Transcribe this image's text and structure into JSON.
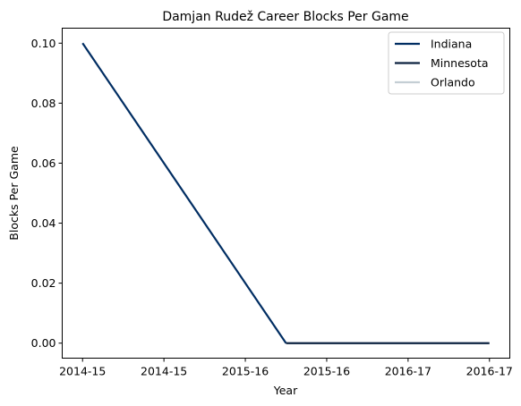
{
  "chart_data": {
    "type": "line",
    "title": "Damjan Rudež Career Blocks Per Game",
    "xlabel": "Year",
    "ylabel": "Blocks Per Game",
    "x_tick_labels": [
      "2014-15",
      "2014-15",
      "2015-16",
      "2015-16",
      "2016-17",
      "2016-17"
    ],
    "y_tick_labels": [
      "0.00",
      "0.02",
      "0.04",
      "0.06",
      "0.08",
      "0.10"
    ],
    "y_ticks": [
      0.0,
      0.02,
      0.04,
      0.06,
      0.08,
      0.1
    ],
    "xlim": [
      -0.25,
      5.25
    ],
    "ylim": [
      -0.005,
      0.105
    ],
    "grid": false,
    "legend": "top-right",
    "series": [
      {
        "name": "Indiana",
        "color": "#002D62",
        "x": [
          0,
          2.5
        ],
        "y": [
          0.1,
          0.0
        ]
      },
      {
        "name": "Minnesota",
        "color": "#0C2340",
        "x": [
          2.5,
          5
        ],
        "y": [
          0.0,
          0.0
        ]
      },
      {
        "name": "Orlando",
        "color": "#C4CED4",
        "x": [],
        "y": []
      }
    ]
  }
}
